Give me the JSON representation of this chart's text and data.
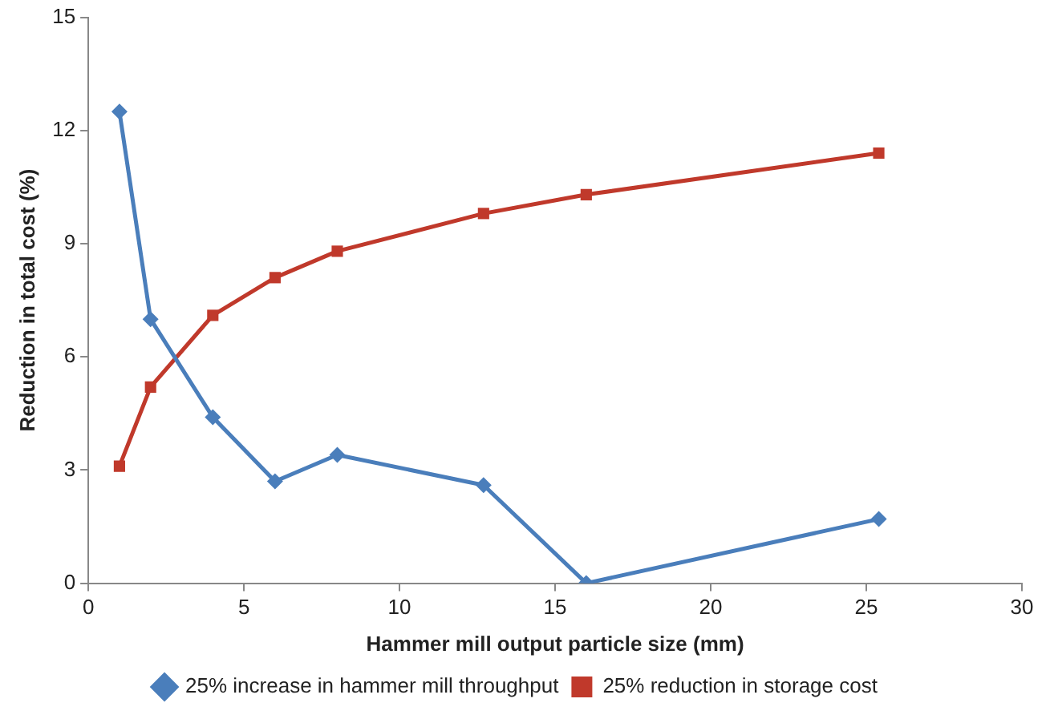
{
  "chart_data": {
    "type": "line",
    "xlabel": "Hammer mill output particle size (mm)",
    "ylabel": "Reduction in total cost (%)",
    "xlim": [
      0,
      30
    ],
    "xticks": [
      0,
      5,
      10,
      15,
      20,
      25,
      30
    ],
    "ylim": [
      0,
      15
    ],
    "yticks": [
      0,
      3,
      6,
      9,
      12,
      15
    ],
    "grid": false,
    "legend": "bottom",
    "line_style": "solid",
    "x": [
      1,
      2,
      4,
      6,
      8,
      12.7,
      16,
      25.4
    ],
    "series": [
      {
        "name": "25% increase in hammer mill throughput",
        "color": "#4a7ebb",
        "marker": "diamond",
        "values": [
          12.5,
          7.0,
          4.4,
          2.7,
          3.4,
          2.6,
          0,
          1.7
        ]
      },
      {
        "name": "25% reduction in storage cost",
        "color": "#c0392b",
        "marker": "square",
        "values": [
          3.1,
          5.2,
          7.1,
          8.1,
          8.8,
          9.8,
          10.3,
          11.4
        ]
      }
    ]
  }
}
